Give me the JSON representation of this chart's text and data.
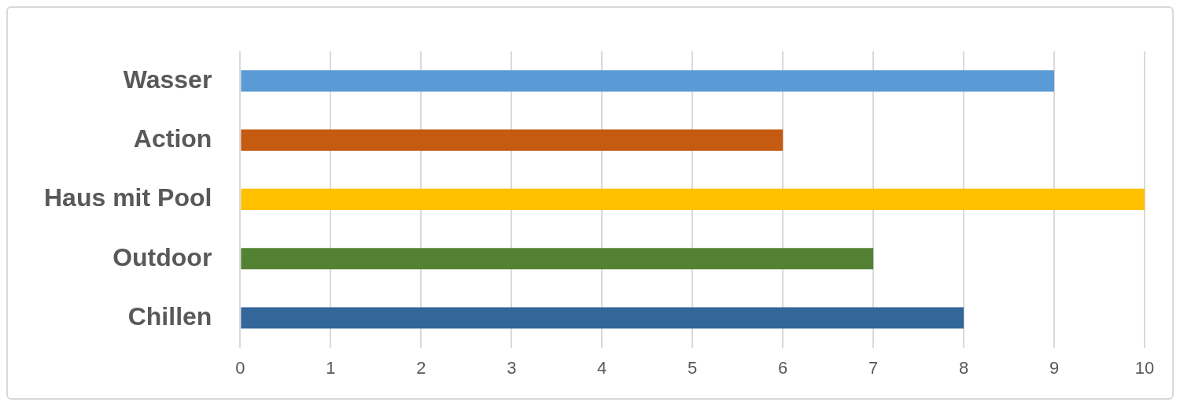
{
  "chart_data": {
    "type": "bar",
    "orientation": "horizontal",
    "categories": [
      "Wasser",
      "Action",
      "Haus mit Pool",
      "Outdoor",
      "Chillen"
    ],
    "values": [
      9,
      6,
      10,
      7,
      8
    ],
    "colors": [
      "#5b9bd5",
      "#c55a11",
      "#ffc000",
      "#548235",
      "#336699"
    ],
    "xlim": [
      0,
      10
    ],
    "xticks": [
      0,
      1,
      2,
      3,
      4,
      5,
      6,
      7,
      8,
      9,
      10
    ],
    "grid": "x",
    "legend": false
  }
}
